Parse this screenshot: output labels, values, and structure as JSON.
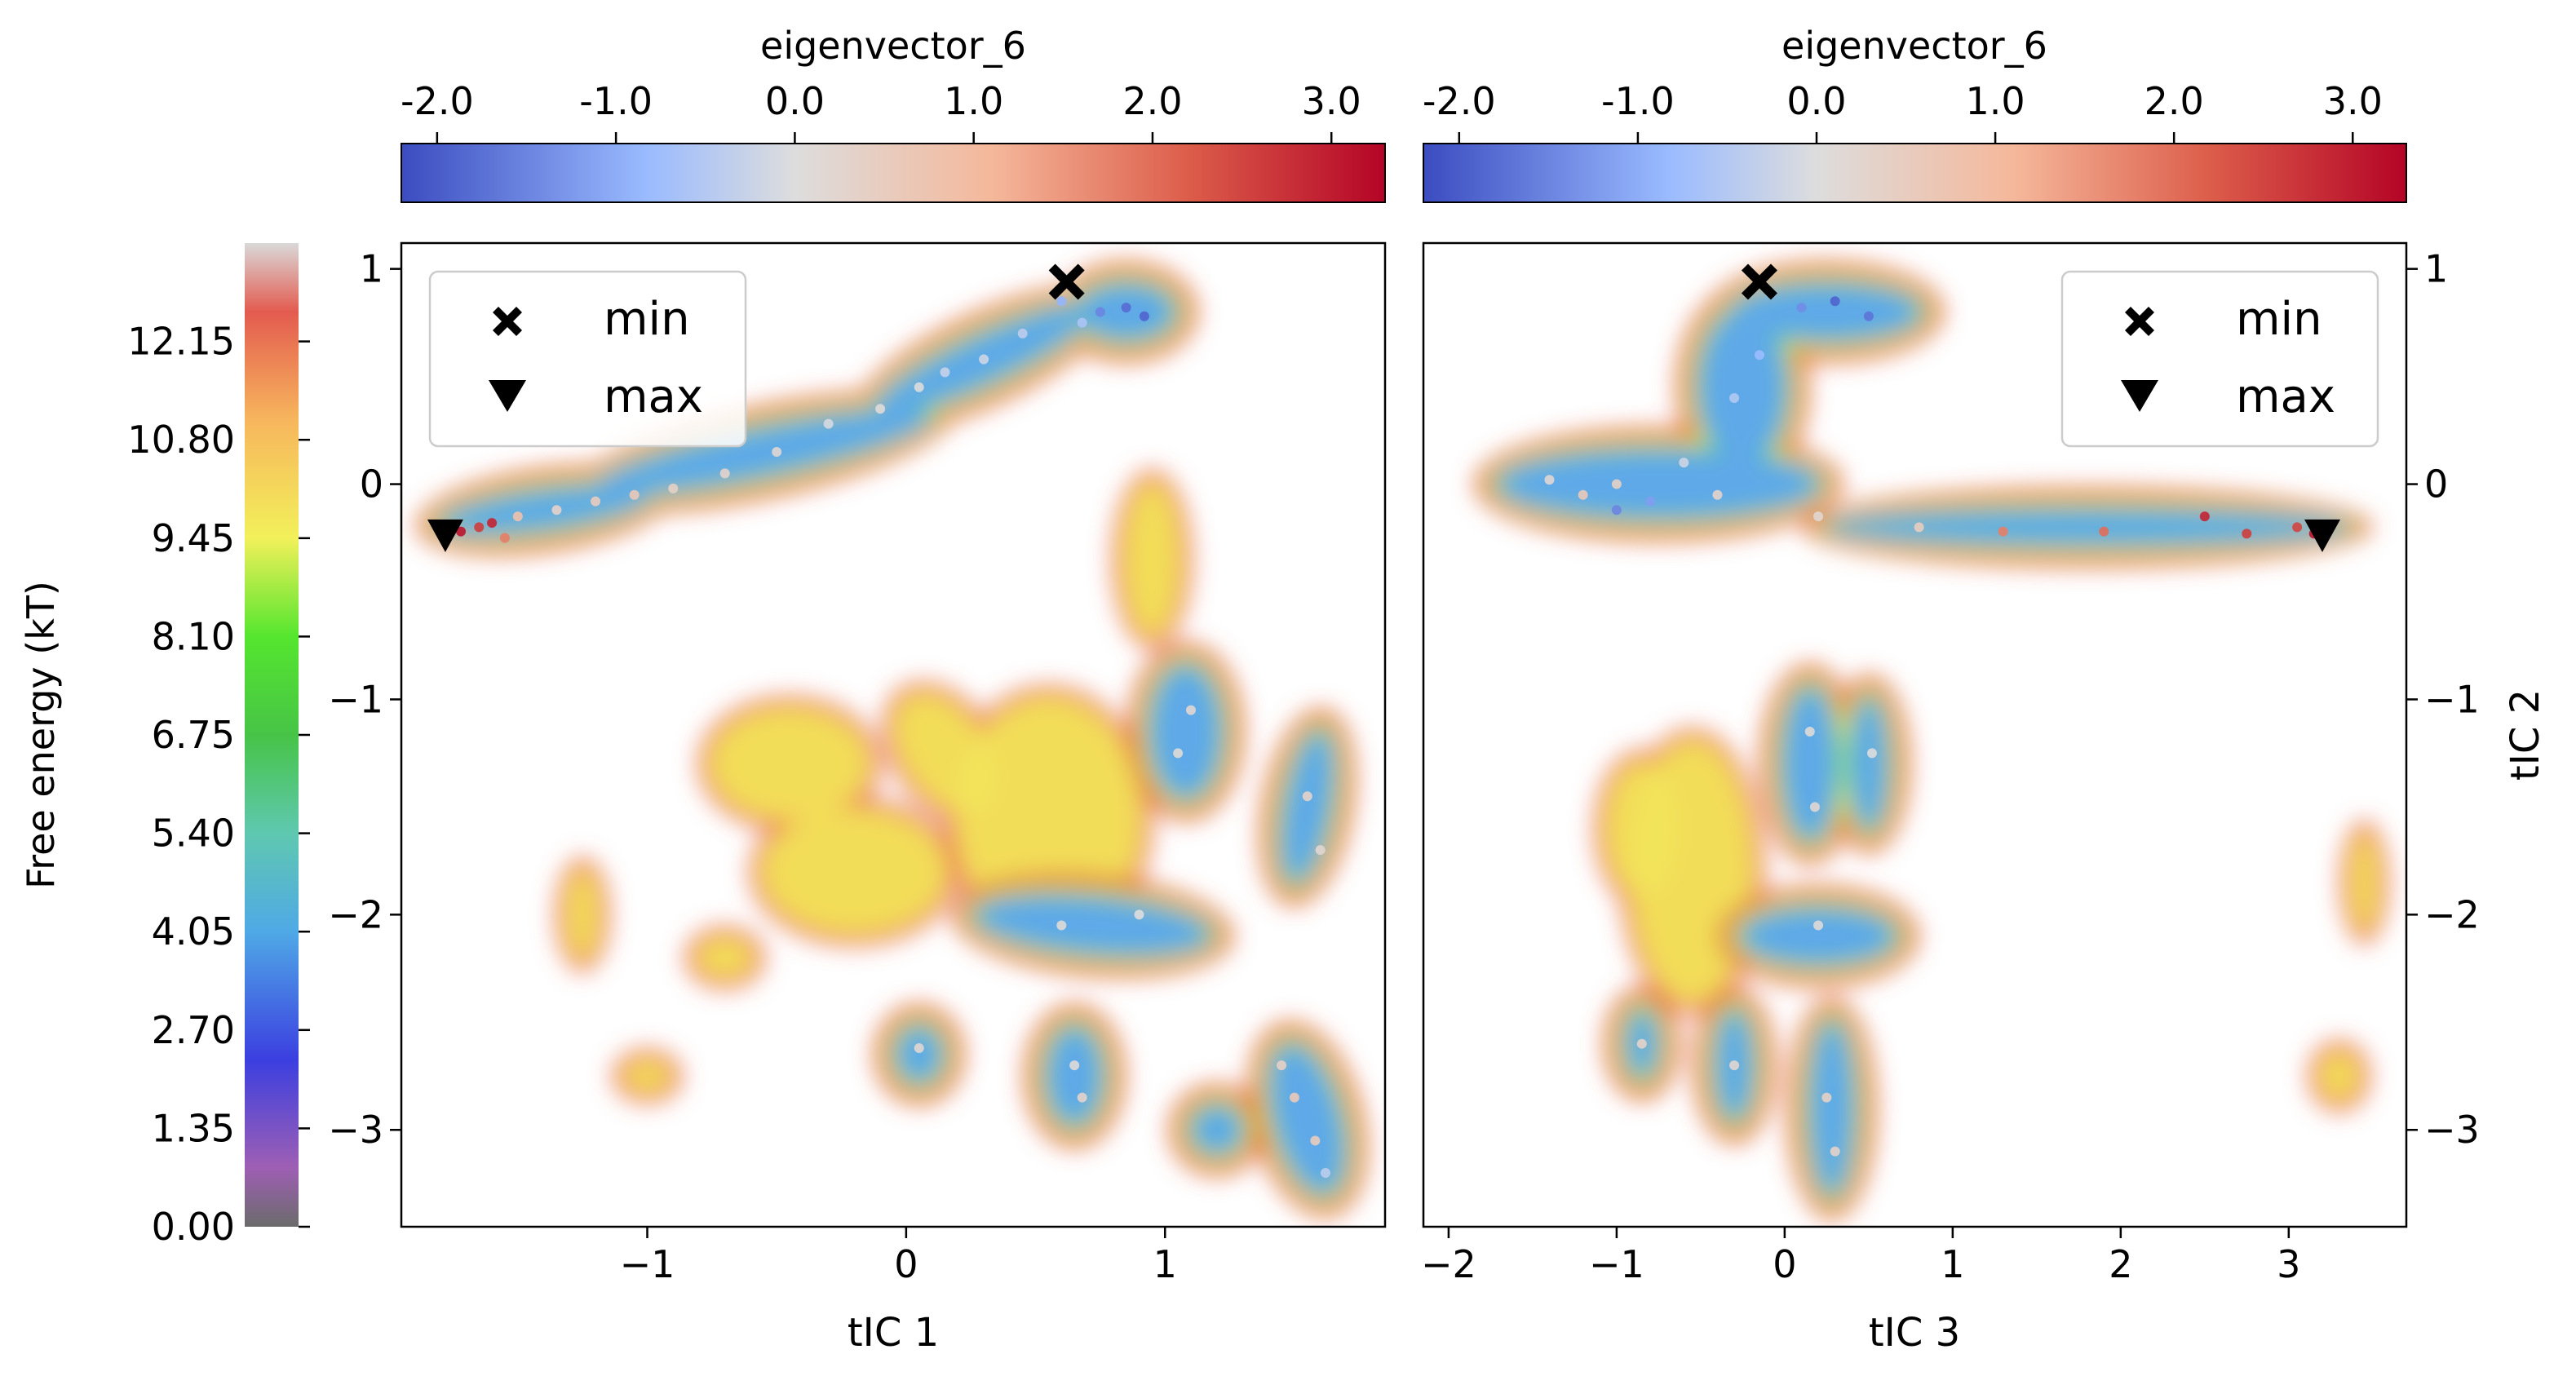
{
  "chart_data": [
    {
      "type": "heatmap",
      "panel": "left",
      "xlabel": "tIC 1",
      "ylabel": "",
      "xlim": [
        -1.95,
        1.85
      ],
      "ylim": [
        -3.45,
        1.12
      ],
      "xticks": [
        -1,
        0,
        1
      ],
      "xtick_labels": [
        "−1",
        "0",
        "1"
      ],
      "yticks": [
        1,
        0,
        -1,
        -2,
        -3
      ],
      "ytick_labels": [
        "1",
        "0",
        "−1",
        "−2",
        "−3"
      ],
      "grid": false,
      "colorbar": {
        "label": "eigenvector_6",
        "range": [
          -2.2,
          3.3
        ],
        "ticks": [
          -2,
          -1,
          0,
          1,
          2,
          3
        ],
        "tick_labels": [
          "-2.0",
          "-1.0",
          "0.0",
          "1.0",
          "2.0",
          "3.0"
        ],
        "colormap": "coolwarm"
      },
      "legend": {
        "placement": "top-left",
        "entries": [
          {
            "label": "min",
            "marker": "X"
          },
          {
            "label": "max",
            "marker": "triangle-down"
          }
        ]
      },
      "markers": [
        {
          "name": "min",
          "x": 0.62,
          "y": 0.94
        },
        {
          "name": "max",
          "x": -1.78,
          "y": -0.24
        }
      ],
      "basins": [
        {
          "x": 0.85,
          "y": 0.8,
          "rx": 0.18,
          "ry": 0.12,
          "rot": 0
        },
        {
          "x": 0.3,
          "y": 0.58,
          "rx": 0.45,
          "ry": 0.1,
          "rot": 25
        },
        {
          "x": -0.55,
          "y": 0.15,
          "rx": 0.65,
          "ry": 0.1,
          "rot": 12
        },
        {
          "x": -1.4,
          "y": -0.12,
          "rx": 0.4,
          "ry": 0.08,
          "rot": 8
        },
        {
          "x": 1.08,
          "y": -1.15,
          "rx": 0.13,
          "ry": 0.3,
          "rot": 0
        },
        {
          "x": 1.55,
          "y": -1.5,
          "rx": 0.08,
          "ry": 0.35,
          "rot": -10
        },
        {
          "x": 0.72,
          "y": -2.05,
          "rx": 0.45,
          "ry": 0.12,
          "rot": -5
        },
        {
          "x": 0.05,
          "y": -2.65,
          "rx": 0.08,
          "ry": 0.12,
          "rot": 0
        },
        {
          "x": 0.65,
          "y": -2.75,
          "rx": 0.1,
          "ry": 0.22,
          "rot": 0
        },
        {
          "x": 1.2,
          "y": -3.0,
          "rx": 0.09,
          "ry": 0.1,
          "rot": 0
        },
        {
          "x": 1.55,
          "y": -2.95,
          "rx": 0.12,
          "ry": 0.35,
          "rot": 15
        }
      ],
      "fringes": [
        {
          "x": 0.55,
          "y": -1.55,
          "rx": 0.35,
          "ry": 0.55,
          "rot": 0
        },
        {
          "x": -0.2,
          "y": -1.8,
          "rx": 0.35,
          "ry": 0.28,
          "rot": 0
        },
        {
          "x": -0.45,
          "y": -1.3,
          "rx": 0.3,
          "ry": 0.25,
          "rot": 0
        },
        {
          "x": 0.15,
          "y": -1.25,
          "rx": 0.15,
          "ry": 0.3,
          "rot": 35
        },
        {
          "x": -0.7,
          "y": -2.2,
          "rx": 0.1,
          "ry": 0.08,
          "rot": 0
        },
        {
          "x": -1.25,
          "y": -2.0,
          "rx": 0.05,
          "ry": 0.2,
          "rot": 0
        },
        {
          "x": -1.0,
          "y": -2.75,
          "rx": 0.08,
          "ry": 0.06,
          "rot": 0
        },
        {
          "x": 0.95,
          "y": -0.35,
          "rx": 0.1,
          "ry": 0.35,
          "rot": 0
        }
      ],
      "points": [
        {
          "x": 0.85,
          "y": 0.82,
          "v": -1.8
        },
        {
          "x": 0.75,
          "y": 0.8,
          "v": -1.5
        },
        {
          "x": 0.92,
          "y": 0.78,
          "v": -1.9
        },
        {
          "x": 0.6,
          "y": 0.85,
          "v": -0.9
        },
        {
          "x": 0.68,
          "y": 0.75,
          "v": -0.6
        },
        {
          "x": 0.45,
          "y": 0.7,
          "v": -0.4
        },
        {
          "x": 0.3,
          "y": 0.58,
          "v": -0.2
        },
        {
          "x": 0.15,
          "y": 0.52,
          "v": -0.3
        },
        {
          "x": 0.05,
          "y": 0.45,
          "v": 0.0
        },
        {
          "x": -0.1,
          "y": 0.35,
          "v": 0.1
        },
        {
          "x": -0.3,
          "y": 0.28,
          "v": -0.1
        },
        {
          "x": -0.5,
          "y": 0.15,
          "v": 0.2
        },
        {
          "x": -0.7,
          "y": 0.05,
          "v": 0.3
        },
        {
          "x": -0.9,
          "y": -0.02,
          "v": 0.4
        },
        {
          "x": -1.05,
          "y": -0.05,
          "v": 0.6
        },
        {
          "x": -1.2,
          "y": -0.08,
          "v": 0.5
        },
        {
          "x": -1.35,
          "y": -0.12,
          "v": 0.3
        },
        {
          "x": -1.5,
          "y": -0.15,
          "v": 0.8
        },
        {
          "x": -1.65,
          "y": -0.2,
          "v": 2.6
        },
        {
          "x": -1.72,
          "y": -0.22,
          "v": 3.1
        },
        {
          "x": -1.6,
          "y": -0.18,
          "v": 2.9
        },
        {
          "x": -1.55,
          "y": -0.25,
          "v": 1.8
        },
        {
          "x": 1.1,
          "y": -1.05,
          "v": 0.2
        },
        {
          "x": 1.05,
          "y": -1.25,
          "v": 0.1
        },
        {
          "x": 1.55,
          "y": -1.45,
          "v": 0.3
        },
        {
          "x": 1.6,
          "y": -1.7,
          "v": 0.2
        },
        {
          "x": 0.6,
          "y": -2.05,
          "v": 0.1
        },
        {
          "x": 0.9,
          "y": -2.0,
          "v": 0.0
        },
        {
          "x": 0.05,
          "y": -2.62,
          "v": 0.2
        },
        {
          "x": 0.65,
          "y": -2.7,
          "v": 0.1
        },
        {
          "x": 0.68,
          "y": -2.85,
          "v": 0.3
        },
        {
          "x": 1.5,
          "y": -2.85,
          "v": 0.6
        },
        {
          "x": 1.58,
          "y": -3.05,
          "v": 0.5
        },
        {
          "x": 1.62,
          "y": -3.2,
          "v": -0.4
        },
        {
          "x": 1.45,
          "y": -2.7,
          "v": 0.4
        }
      ]
    },
    {
      "type": "heatmap",
      "panel": "right",
      "xlabel": "tIC 3",
      "ylabel": "tIC 2",
      "xlim": [
        -2.15,
        3.7
      ],
      "ylim": [
        -3.45,
        1.12
      ],
      "xticks": [
        -2,
        -1,
        0,
        1,
        2,
        3
      ],
      "xtick_labels": [
        "−2",
        "−1",
        "0",
        "1",
        "2",
        "3"
      ],
      "yticks": [
        1,
        0,
        -1,
        -2,
        -3
      ],
      "ytick_labels": [
        "1",
        "0",
        "−1",
        "−2",
        "−3"
      ],
      "grid": false,
      "colorbar": {
        "label": "eigenvector_6",
        "range": [
          -2.2,
          3.3
        ],
        "ticks": [
          -2,
          -1,
          0,
          1,
          2,
          3
        ],
        "tick_labels": [
          "-2.0",
          "-1.0",
          "0.0",
          "1.0",
          "2.0",
          "3.0"
        ],
        "colormap": "coolwarm"
      },
      "legend": {
        "placement": "top-right",
        "entries": [
          {
            "label": "min",
            "marker": "X"
          },
          {
            "label": "max",
            "marker": "triangle-down"
          }
        ]
      },
      "markers": [
        {
          "name": "min",
          "x": -0.15,
          "y": 0.94
        },
        {
          "name": "max",
          "x": 3.2,
          "y": -0.24
        }
      ],
      "basins": [
        {
          "x": 0.25,
          "y": 0.8,
          "rx": 0.55,
          "ry": 0.12,
          "rot": 0
        },
        {
          "x": -0.25,
          "y": 0.45,
          "rx": 0.25,
          "ry": 0.35,
          "rot": 0
        },
        {
          "x": -0.75,
          "y": 0.0,
          "rx": 0.95,
          "ry": 0.15,
          "rot": 0
        },
        {
          "x": 1.8,
          "y": -0.2,
          "rx": 1.55,
          "ry": 0.07,
          "rot": 0
        },
        {
          "x": 0.15,
          "y": -1.3,
          "rx": 0.15,
          "ry": 0.35,
          "rot": 0
        },
        {
          "x": 0.5,
          "y": -1.3,
          "rx": 0.1,
          "ry": 0.3,
          "rot": 0
        },
        {
          "x": 0.2,
          "y": -2.1,
          "rx": 0.45,
          "ry": 0.12,
          "rot": 0
        },
        {
          "x": -0.85,
          "y": -2.6,
          "rx": 0.08,
          "ry": 0.15,
          "rot": 0
        },
        {
          "x": -0.3,
          "y": -2.7,
          "rx": 0.1,
          "ry": 0.25,
          "rot": 0
        },
        {
          "x": 0.28,
          "y": -2.9,
          "rx": 0.12,
          "ry": 0.4,
          "rot": 0
        }
      ],
      "fringes": [
        {
          "x": -0.55,
          "y": -1.8,
          "rx": 0.35,
          "ry": 0.6,
          "rot": 0
        },
        {
          "x": -0.85,
          "y": -1.6,
          "rx": 0.2,
          "ry": 0.3,
          "rot": 0
        },
        {
          "x": 3.45,
          "y": -1.85,
          "rx": 0.06,
          "ry": 0.22,
          "rot": 0
        },
        {
          "x": 3.3,
          "y": -2.75,
          "rx": 0.1,
          "ry": 0.1,
          "rot": 0
        }
      ],
      "points": [
        {
          "x": 0.3,
          "y": 0.85,
          "v": -1.9
        },
        {
          "x": 0.5,
          "y": 0.78,
          "v": -1.7
        },
        {
          "x": 0.1,
          "y": 0.82,
          "v": -1.4
        },
        {
          "x": -0.15,
          "y": 0.6,
          "v": -0.8
        },
        {
          "x": -0.3,
          "y": 0.4,
          "v": -0.5
        },
        {
          "x": -0.6,
          "y": 0.1,
          "v": -0.2
        },
        {
          "x": -1.0,
          "y": 0.0,
          "v": 0.4
        },
        {
          "x": -1.2,
          "y": -0.05,
          "v": 0.6
        },
        {
          "x": -1.4,
          "y": 0.02,
          "v": 0.2
        },
        {
          "x": -1.0,
          "y": -0.12,
          "v": -1.5
        },
        {
          "x": -0.8,
          "y": -0.08,
          "v": -1.2
        },
        {
          "x": -0.4,
          "y": -0.05,
          "v": 0.3
        },
        {
          "x": 0.2,
          "y": -0.15,
          "v": 0.2
        },
        {
          "x": 0.8,
          "y": -0.2,
          "v": 0.5
        },
        {
          "x": 1.3,
          "y": -0.22,
          "v": 1.8
        },
        {
          "x": 1.9,
          "y": -0.22,
          "v": 2.0
        },
        {
          "x": 2.5,
          "y": -0.15,
          "v": 2.9
        },
        {
          "x": 2.75,
          "y": -0.23,
          "v": 2.6
        },
        {
          "x": 3.15,
          "y": -0.23,
          "v": 3.1
        },
        {
          "x": 3.05,
          "y": -0.2,
          "v": 2.5
        },
        {
          "x": 0.15,
          "y": -1.15,
          "v": 0.1
        },
        {
          "x": 0.18,
          "y": -1.5,
          "v": 0.2
        },
        {
          "x": 0.52,
          "y": -1.25,
          "v": 0.0
        },
        {
          "x": 0.2,
          "y": -2.05,
          "v": 0.1
        },
        {
          "x": -0.85,
          "y": -2.6,
          "v": 0.3
        },
        {
          "x": -0.3,
          "y": -2.7,
          "v": 0.2
        },
        {
          "x": 0.25,
          "y": -2.85,
          "v": 0.4
        },
        {
          "x": 0.3,
          "y": -3.1,
          "v": 0.3
        }
      ]
    }
  ],
  "free_energy_colorbar": {
    "label": "Free energy (kT)",
    "range": [
      0,
      13.5
    ],
    "ticks": [
      0.0,
      1.35,
      2.7,
      4.05,
      5.4,
      6.75,
      8.1,
      9.45,
      10.8,
      12.15
    ],
    "tick_labels": [
      "0.00",
      "1.35",
      "2.70",
      "4.05",
      "5.40",
      "6.75",
      "8.10",
      "9.45",
      "10.80",
      "12.15"
    ],
    "colors": [
      "#6b6b6b",
      "#9e5fb4",
      "#3b3fe0",
      "#4fa9e6",
      "#5fc8b0",
      "#47c447",
      "#55e62e",
      "#f2f05a",
      "#f7b65d",
      "#e35b4f",
      "#d9d9d9"
    ]
  }
}
